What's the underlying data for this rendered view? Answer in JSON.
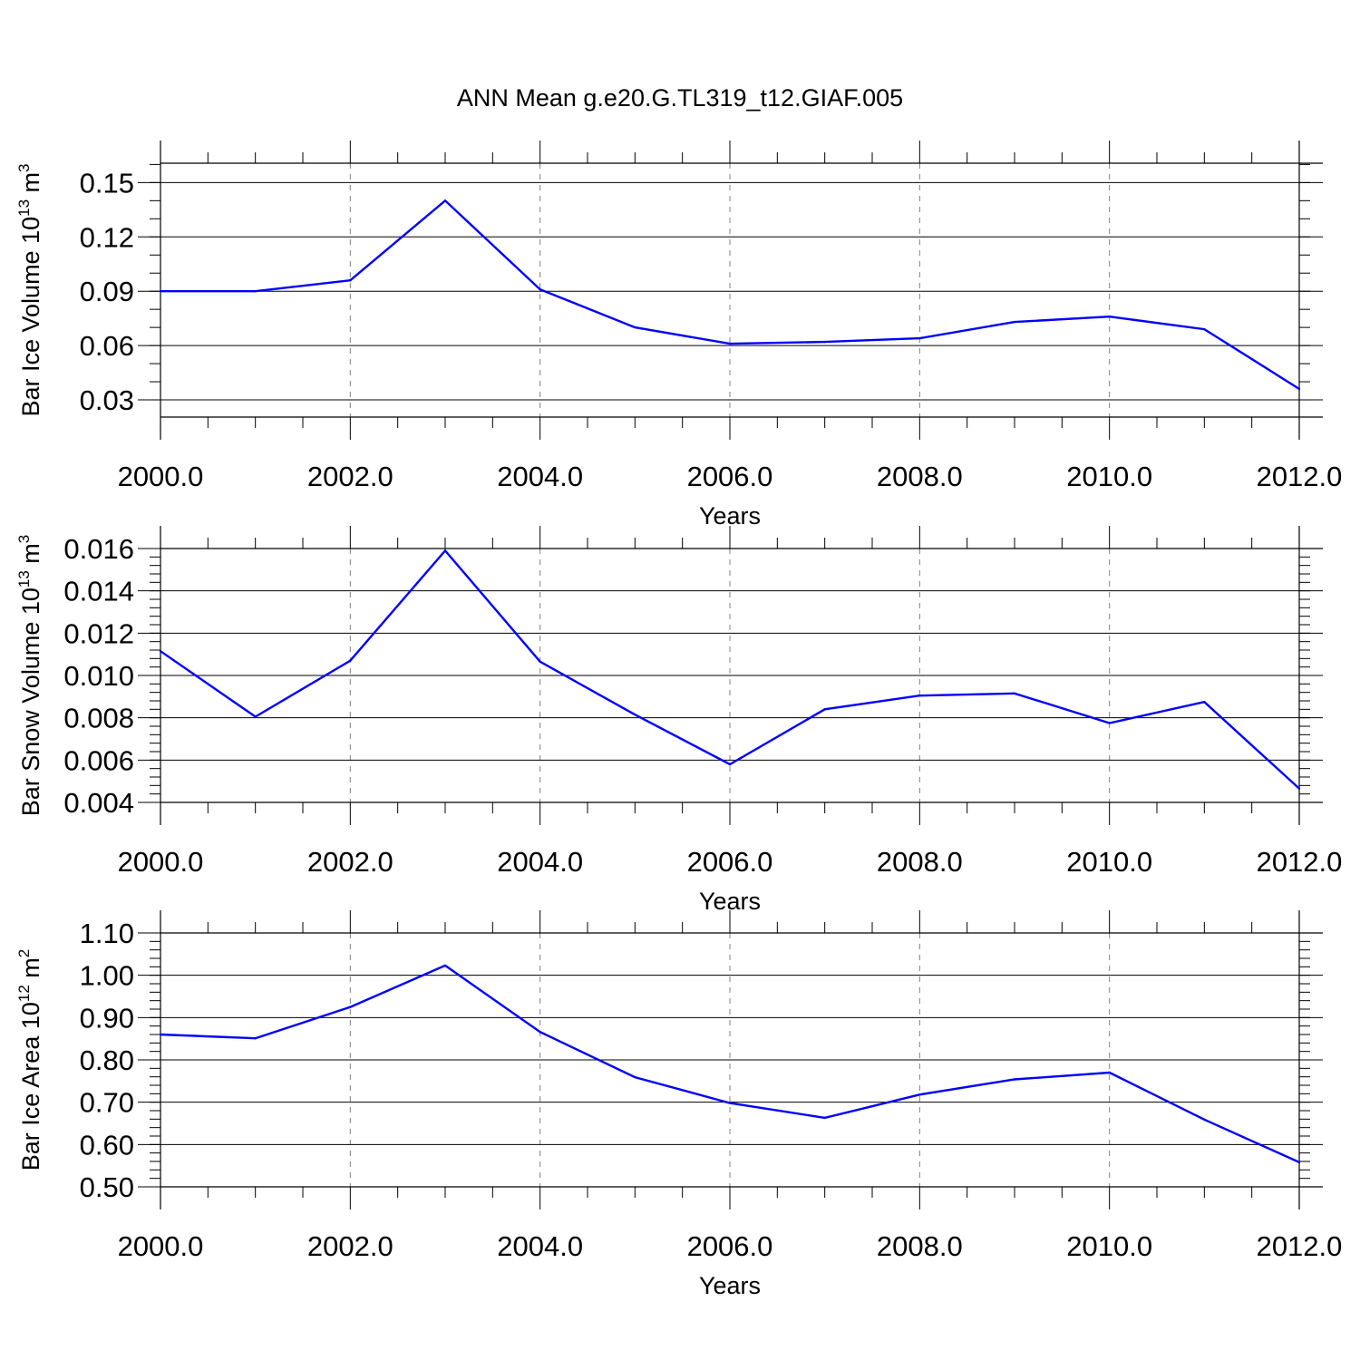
{
  "title": "ANN Mean g.e20.G.TL319_t12.GIAF.005",
  "colors": {
    "line": "#0000ff",
    "axis": "#000000",
    "grid": "#808080"
  },
  "chart_data": [
    {
      "type": "line",
      "xlabel": "Years",
      "ylabel": {
        "text": "Bar Ice Volume 10",
        "exp": "13",
        "unit": " m",
        "unit_exp": "3"
      },
      "xlim": [
        2000,
        2012
      ],
      "ylim": [
        0.0205,
        0.1607
      ],
      "x_ticks": [
        2000,
        2002,
        2004,
        2006,
        2008,
        2010,
        2012
      ],
      "x_tick_labels": [
        "2000.0",
        "2002.0",
        "2004.0",
        "2006.0",
        "2008.0",
        "2010.0",
        "2012.0"
      ],
      "y_ticks": [
        0.03,
        0.06,
        0.09,
        0.12,
        0.15
      ],
      "y_tick_labels": [
        "0.03",
        "0.06",
        "0.09",
        "0.12",
        "0.15"
      ],
      "y_minor_step": 0.01,
      "grid": "vertical dashed at major x ticks",
      "x": [
        2000,
        2001,
        2002,
        2003,
        2004,
        2005,
        2006,
        2007,
        2008,
        2009,
        2010,
        2011,
        2012
      ],
      "values": [
        0.09,
        0.09,
        0.096,
        0.14,
        0.091,
        0.07,
        0.061,
        0.062,
        0.064,
        0.073,
        0.076,
        0.069,
        0.036
      ]
    },
    {
      "type": "line",
      "xlabel": "Years",
      "ylabel": {
        "text": "Bar Snow Volume 10",
        "exp": "13",
        "unit": " m",
        "unit_exp": "3"
      },
      "xlim": [
        2000,
        2012
      ],
      "ylim": [
        0.004,
        0.016
      ],
      "x_ticks": [
        2000,
        2002,
        2004,
        2006,
        2008,
        2010,
        2012
      ],
      "x_tick_labels": [
        "2000.0",
        "2002.0",
        "2004.0",
        "2006.0",
        "2008.0",
        "2010.0",
        "2012.0"
      ],
      "y_ticks": [
        0.004,
        0.006,
        0.008,
        0.01,
        0.012,
        0.014,
        0.016
      ],
      "y_tick_labels": [
        "0.004",
        "0.006",
        "0.008",
        "0.010",
        "0.012",
        "0.014",
        "0.016"
      ],
      "y_minor_step": 0.0004,
      "grid": "vertical dashed at major x ticks",
      "x": [
        2000,
        2001,
        2002,
        2003,
        2004,
        2005,
        2006,
        2007,
        2008,
        2009,
        2010,
        2011,
        2012
      ],
      "values": [
        0.01115,
        0.00805,
        0.0107,
        0.0159,
        0.01065,
        0.00815,
        0.0058,
        0.0084,
        0.00905,
        0.00915,
        0.00775,
        0.00875,
        0.00465
      ]
    },
    {
      "type": "line",
      "xlabel": "Years",
      "ylabel": {
        "text": "Bar Ice Area 10",
        "exp": "12",
        "unit": " m",
        "unit_exp": "2"
      },
      "xlim": [
        2000,
        2012
      ],
      "ylim": [
        0.5,
        1.1
      ],
      "x_ticks": [
        2000,
        2002,
        2004,
        2006,
        2008,
        2010,
        2012
      ],
      "x_tick_labels": [
        "2000.0",
        "2002.0",
        "2004.0",
        "2006.0",
        "2008.0",
        "2010.0",
        "2012.0"
      ],
      "y_ticks": [
        0.5,
        0.6,
        0.7,
        0.8,
        0.9,
        1.0,
        1.1
      ],
      "y_tick_labels": [
        "0.50",
        "0.60",
        "0.70",
        "0.80",
        "0.90",
        "1.00",
        "1.10"
      ],
      "y_minor_step": 0.02,
      "grid": "vertical dashed at major x ticks",
      "x": [
        2000,
        2001,
        2002,
        2003,
        2004,
        2005,
        2006,
        2007,
        2008,
        2009,
        2010,
        2011,
        2012
      ],
      "values": [
        0.86,
        0.851,
        0.925,
        1.023,
        0.866,
        0.759,
        0.698,
        0.663,
        0.718,
        0.754,
        0.77,
        0.659,
        0.558
      ]
    }
  ]
}
